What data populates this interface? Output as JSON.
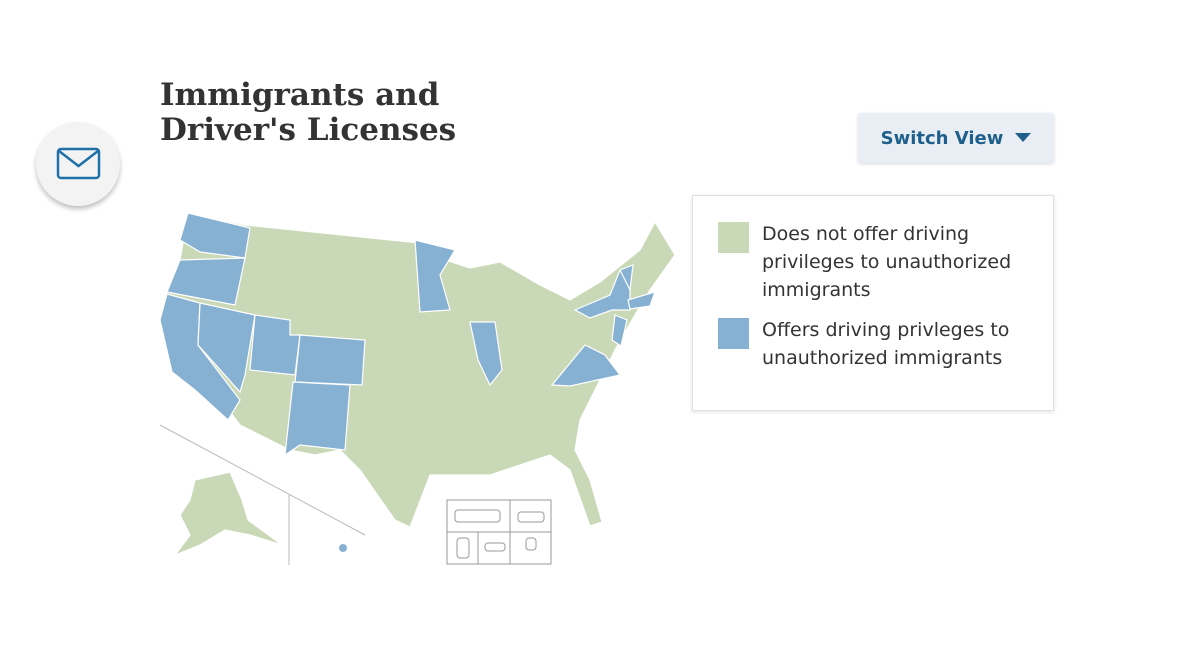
{
  "header": {
    "title": "Immigrants and Driver's Licenses",
    "button": "Switch View"
  },
  "legend": {
    "items": [
      {
        "label": "Does not offer driving privileges to unauthorized immigrants",
        "color": "#c9d8b6"
      },
      {
        "label": "Offers driving privleges to unauthorized immigrants",
        "color": "#87b1d3"
      }
    ]
  }
}
